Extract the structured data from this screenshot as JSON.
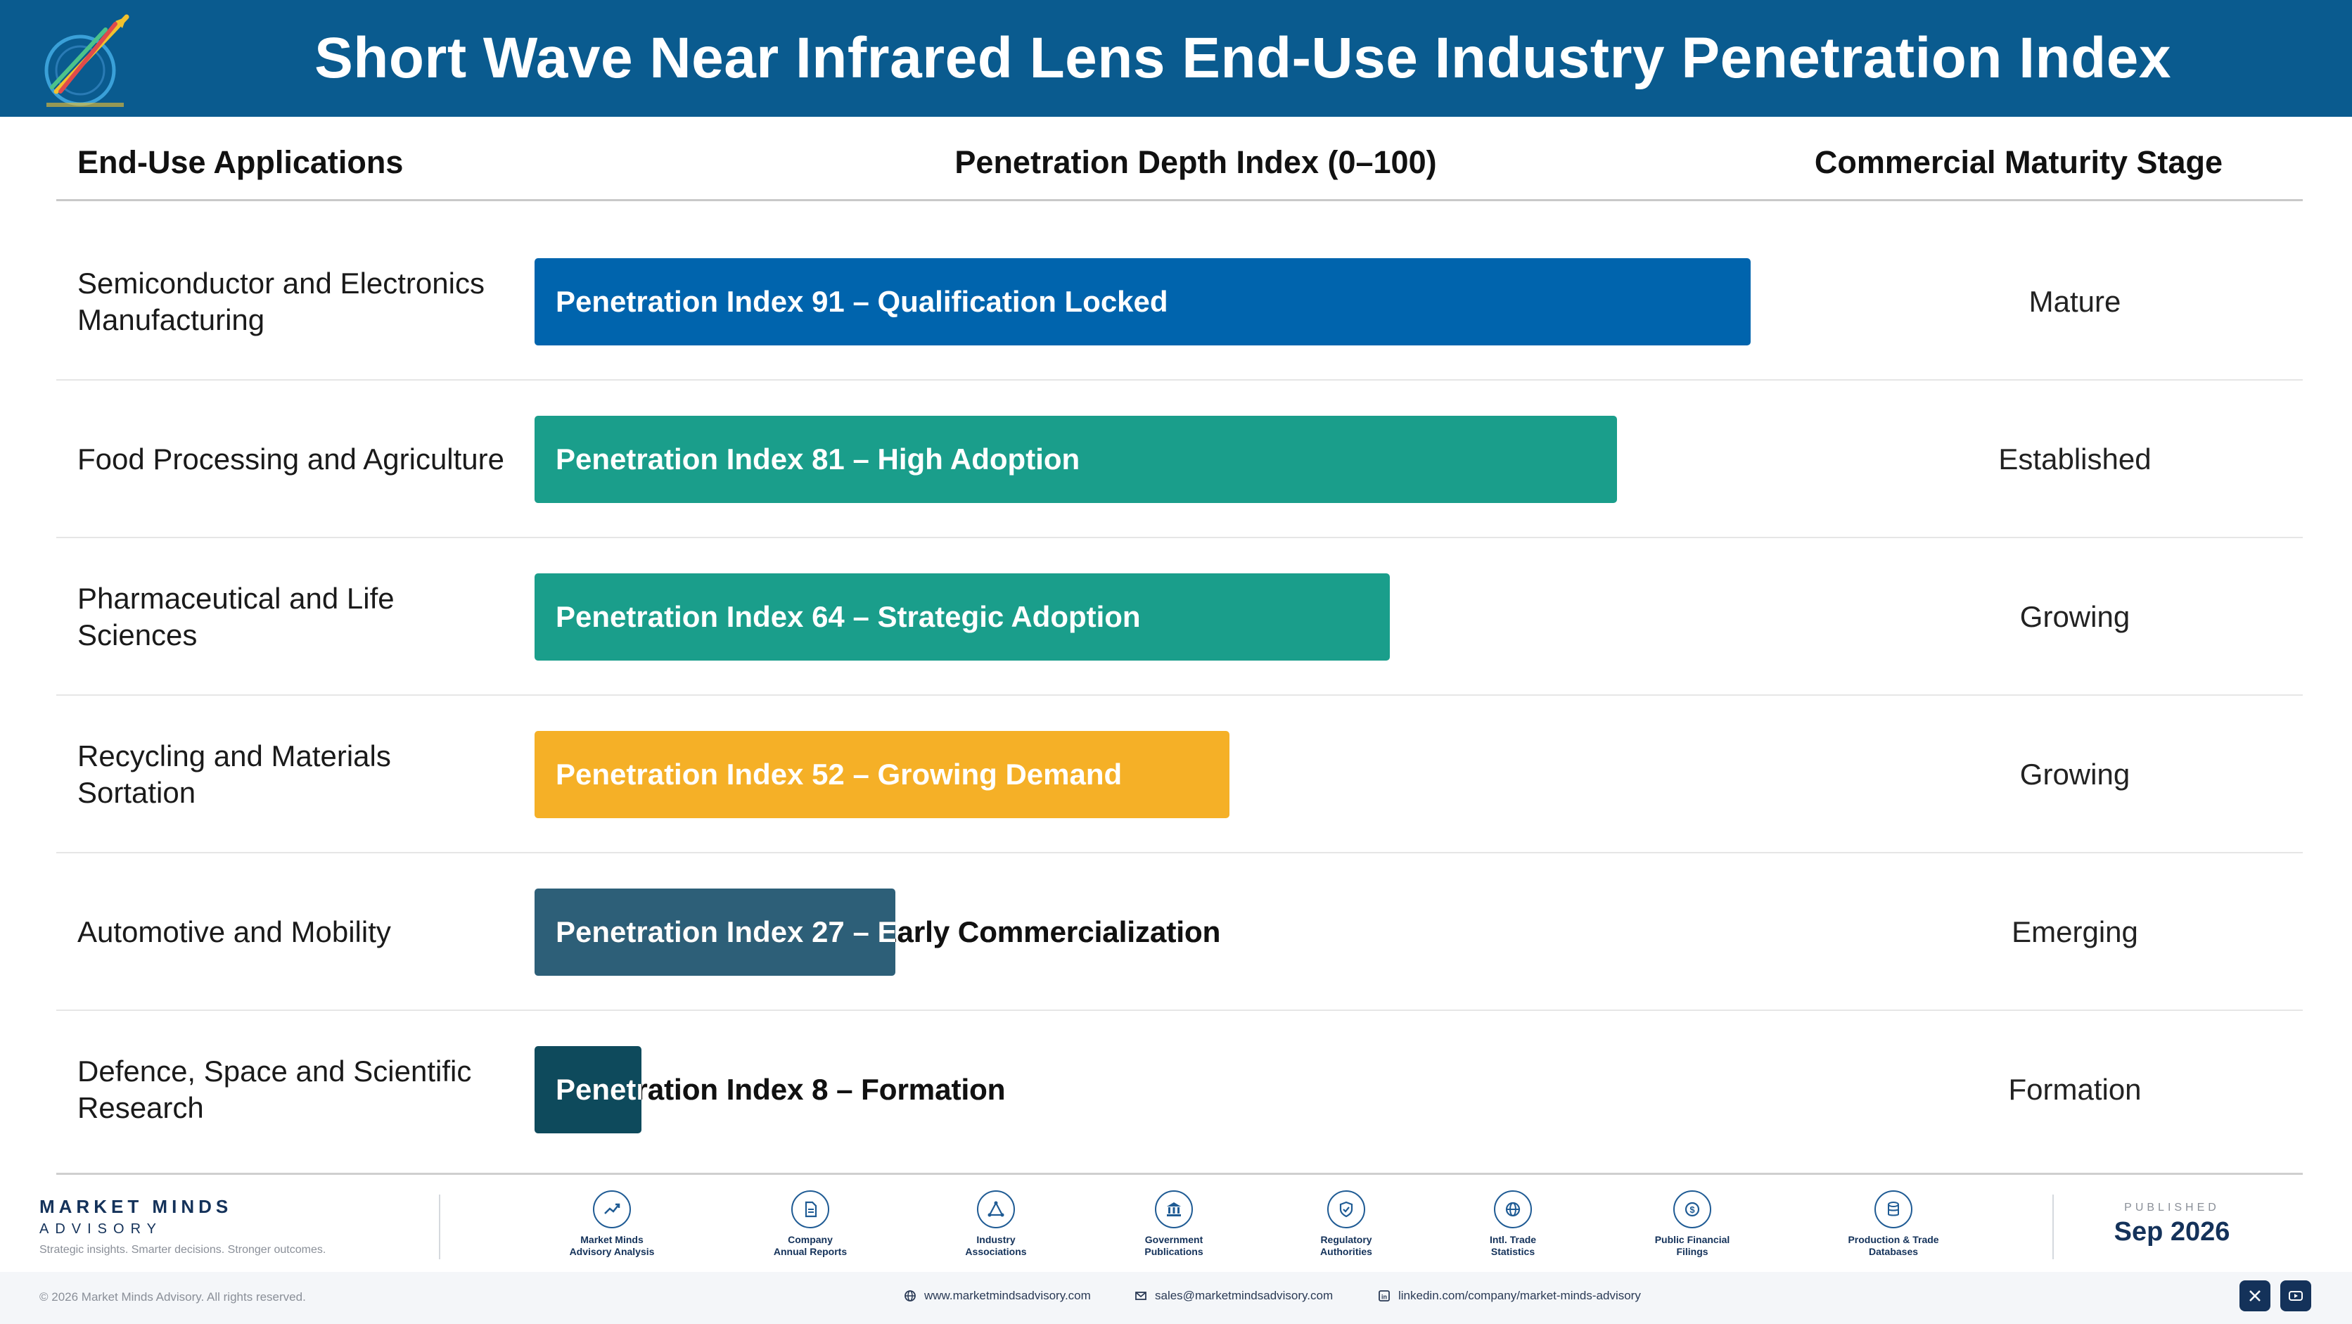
{
  "header": {
    "title": "Short Wave Near Infrared Lens End-Use Industry Penetration Index"
  },
  "columns": {
    "application": "End-Use Applications",
    "index": "Penetration Depth Index (0–100)",
    "stage": "Commercial Maturity Stage"
  },
  "chart_data": {
    "type": "bar",
    "orientation": "horizontal",
    "title": "Short Wave Near Infrared Lens End-Use Industry Penetration Index",
    "xlim": [
      0,
      100
    ],
    "categories": [
      "Semiconductor and Electronics Manufacturing",
      "Food Processing and Agriculture",
      "Pharmaceutical and Life Sciences",
      "Recycling and Materials Sortation",
      "Automotive and Mobility",
      "Defence, Space and Scientific Research"
    ],
    "values": [
      91,
      81,
      64,
      52,
      27,
      8
    ],
    "bar_labels": [
      "Penetration Index 91 – Qualification Locked",
      "Penetration Index 81 – High Adoption",
      "Penetration Index 64 – Strategic Adoption",
      "Penetration Index 52 – Growing Demand",
      "Penetration Index 27 – Early Commercialization",
      "Penetration Index 8 – Formation"
    ],
    "stages": [
      "Mature",
      "Established",
      "Growing",
      "Growing",
      "Emerging",
      "Formation"
    ],
    "colors": [
      "#0064ad",
      "#1a9e8b",
      "#1a9e8b",
      "#f5b027",
      "#2d5f78",
      "#0e4a5c"
    ]
  },
  "footer": {
    "brand_name": "MARKET MINDS",
    "brand_sub": "ADVISORY",
    "brand_tagline": "Strategic insights. Smarter decisions. Stronger outcomes.",
    "sources": [
      {
        "icon": "trend-chart-icon",
        "label_1": "Market Minds",
        "label_2": "Advisory Analysis"
      },
      {
        "icon": "document-icon",
        "label_1": "Company",
        "label_2": "Annual Reports"
      },
      {
        "icon": "network-icon",
        "label_1": "Industry",
        "label_2": "Associations"
      },
      {
        "icon": "government-building-icon",
        "label_1": "Government",
        "label_2": "Publications"
      },
      {
        "icon": "shield-check-icon",
        "label_1": "Regulatory",
        "label_2": "Authorities"
      },
      {
        "icon": "globe-icon",
        "label_1": "Intl. Trade",
        "label_2": "Statistics"
      },
      {
        "icon": "dollar-coin-icon",
        "label_1": "Public Financial",
        "label_2": "Filings"
      },
      {
        "icon": "database-icon",
        "label_1": "Production & Trade",
        "label_2": "Databases"
      }
    ],
    "published_label": "PUBLISHED",
    "published_date": "Sep 2026",
    "copyright": "© 2026 Market Minds Advisory. All rights reserved.",
    "website": "www.marketmindsadvisory.com",
    "email": "sales@marketmindsadvisory.com",
    "linkedin": "linkedin.com/company/market-minds-advisory"
  }
}
